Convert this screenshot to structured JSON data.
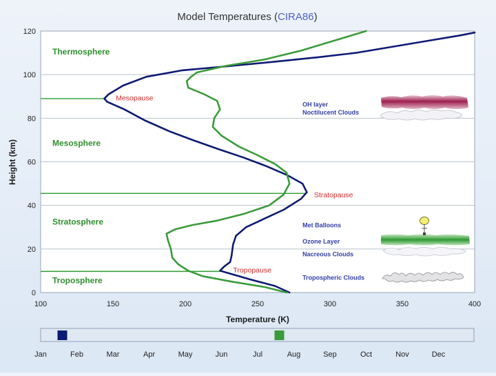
{
  "chart_data": {
    "type": "line",
    "title": {
      "prefix": "Model Temperatures (",
      "source": "CIRA86",
      "suffix": ")"
    },
    "xlabel": "Temperature (K)",
    "ylabel": "Height (km)",
    "xlim": [
      100,
      400
    ],
    "ylim": [
      0,
      120
    ],
    "x_ticks": [
      "100",
      "150",
      "200",
      "250",
      "300",
      "350",
      "400"
    ],
    "y_ticks": [
      "0",
      "20",
      "40",
      "60",
      "80",
      "100",
      "120"
    ],
    "grid": true,
    "series": [
      {
        "name": "January",
        "color": "#0d1a73",
        "points": [
          [
            272,
            0
          ],
          [
            262,
            3
          ],
          [
            245,
            6
          ],
          [
            232,
            8.5
          ],
          [
            224,
            10
          ],
          [
            227,
            12
          ],
          [
            231,
            14
          ],
          [
            232,
            17
          ],
          [
            233,
            22
          ],
          [
            235,
            26
          ],
          [
            242,
            30
          ],
          [
            255,
            34
          ],
          [
            268,
            38
          ],
          [
            280,
            43
          ],
          [
            284,
            46
          ],
          [
            281,
            50
          ],
          [
            270,
            54
          ],
          [
            256,
            58
          ],
          [
            240,
            62
          ],
          [
            222,
            66
          ],
          [
            205,
            70
          ],
          [
            189,
            74
          ],
          [
            172,
            79
          ],
          [
            158,
            84
          ],
          [
            146,
            87.5
          ],
          [
            144,
            89
          ],
          [
            147,
            91
          ],
          [
            157,
            95
          ],
          [
            173,
            99
          ],
          [
            198,
            102
          ],
          [
            232,
            104
          ],
          [
            263,
            106
          ],
          [
            292,
            108
          ],
          [
            318,
            110
          ],
          [
            345,
            113
          ],
          [
            372,
            116
          ],
          [
            390,
            118
          ],
          [
            400,
            119.3
          ]
        ]
      },
      {
        "name": "July",
        "color": "#3a9b3a",
        "points": [
          [
            270,
            0
          ],
          [
            255,
            2.5
          ],
          [
            232,
            5
          ],
          [
            212,
            7.5
          ],
          [
            202,
            10
          ],
          [
            195,
            13
          ],
          [
            191,
            16
          ],
          [
            190,
            20
          ],
          [
            188,
            24
          ],
          [
            187,
            27
          ],
          [
            193,
            29
          ],
          [
            205,
            31
          ],
          [
            222,
            33
          ],
          [
            240,
            36
          ],
          [
            258,
            40
          ],
          [
            268,
            45
          ],
          [
            272,
            50
          ],
          [
            270,
            55
          ],
          [
            262,
            59
          ],
          [
            250,
            63
          ],
          [
            237,
            67
          ],
          [
            225,
            72
          ],
          [
            219,
            76
          ],
          [
            220,
            80
          ],
          [
            224,
            84
          ],
          [
            222,
            88
          ],
          [
            213,
            91
          ],
          [
            202,
            94
          ],
          [
            201,
            97
          ],
          [
            204,
            99
          ],
          [
            208,
            101
          ],
          [
            228,
            104
          ],
          [
            255,
            107
          ],
          [
            280,
            111
          ],
          [
            300,
            115
          ],
          [
            315,
            118
          ],
          [
            325,
            120
          ]
        ]
      }
    ],
    "layers": [
      {
        "name": "Thermosphere",
        "y": 110.5
      },
      {
        "name": "Mesosphere",
        "y": 68.5
      },
      {
        "name": "Stratosphere",
        "y": 32.5
      },
      {
        "name": "Troposphere",
        "y": 5.5
      }
    ],
    "pauses": [
      {
        "name": "Mesopause",
        "height": 89,
        "x_to": 144,
        "label_x": 152,
        "label_y": 89.5
      },
      {
        "name": "Stratopause",
        "height": 45.5,
        "x_to": 283,
        "label_x": 289,
        "label_y": 45
      },
      {
        "name": "Tropopause",
        "height": 9.7,
        "x_to": 224,
        "label_x": 233,
        "label_y": 10.5
      }
    ],
    "annotations": [
      {
        "text": "OH layer",
        "y": 86.3,
        "x": 281
      },
      {
        "text": "Noctilucent Clouds",
        "y": 82.7,
        "x": 281
      },
      {
        "text": "Met Balloons",
        "y": 30.8,
        "x": 281
      },
      {
        "text": "Ozone Layer",
        "y": 23.5,
        "x": 281
      },
      {
        "text": "Nacreous Clouds",
        "y": 17.5,
        "x": 281
      },
      {
        "text": "Tropospheric Clouds",
        "y": 6.8,
        "x": 281
      }
    ],
    "month_axis": {
      "months": [
        "Jan",
        "Feb",
        "Mar",
        "Apr",
        "May",
        "Jun",
        "Jul",
        "Aug",
        "Sep",
        "Oct",
        "Nov",
        "Dec"
      ],
      "markers": [
        {
          "series": "January",
          "month_position": 0.6,
          "color": "#0d1a73"
        },
        {
          "series": "July",
          "month_position": 6.6,
          "color": "#3a9b3a"
        }
      ]
    }
  }
}
